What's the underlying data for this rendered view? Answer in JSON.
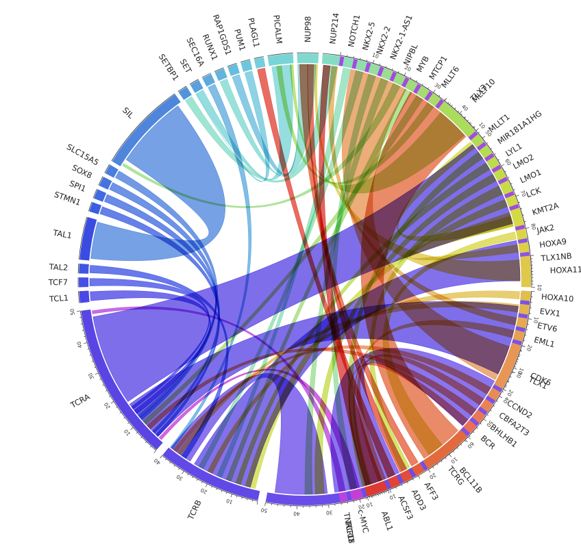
{
  "segments": [
    {
      "name": "TLX3",
      "color": "#a24be0",
      "ticks": true,
      "max": 80
    },
    {
      "name": "TLX1NB",
      "color": "#8a55e6",
      "ticks": false
    },
    {
      "name": "TLX1",
      "color": "#7a52e8",
      "ticks": true,
      "max": 60
    },
    {
      "name": "TCRG",
      "color": "#7050e8",
      "ticks": false
    },
    {
      "name": "TCRD",
      "color": "#6a4de8",
      "ticks": true,
      "max": 50
    },
    {
      "name": "TCRB",
      "color": "#6049e6",
      "ticks": true,
      "max": 40
    },
    {
      "name": "TCRA",
      "color": "#5a45e4",
      "ticks": true,
      "max": 50
    },
    {
      "name": "TCL1",
      "color": "#4b47e6",
      "ticks": false
    },
    {
      "name": "TCF7",
      "color": "#4450e6",
      "ticks": false
    },
    {
      "name": "TAL2",
      "color": "#3e55e4",
      "ticks": false
    },
    {
      "name": "TAL1",
      "color": "#3a4ce0",
      "ticks": false
    },
    {
      "name": "STMN1",
      "color": "#3a5ee0",
      "ticks": false
    },
    {
      "name": "SPI1",
      "color": "#3f6ae0",
      "ticks": false
    },
    {
      "name": "SOX8",
      "color": "#4574de",
      "ticks": false
    },
    {
      "name": "SLC15A5",
      "color": "#4a7edc",
      "ticks": false
    },
    {
      "name": "SIL",
      "color": "#4f86dc",
      "ticks": false
    },
    {
      "name": "SETBP1",
      "color": "#5393dc",
      "ticks": false
    },
    {
      "name": "SET",
      "color": "#59a0dc",
      "ticks": false
    },
    {
      "name": "SEC16A",
      "color": "#5eaadc",
      "ticks": false
    },
    {
      "name": "RUNX1",
      "color": "#63b4dc",
      "ticks": false
    },
    {
      "name": "RAP1GDS1",
      "color": "#68bddc",
      "ticks": false
    },
    {
      "name": "PUM1",
      "color": "#6ec6dc",
      "ticks": false
    },
    {
      "name": "PLAGL1",
      "color": "#74cedb",
      "ticks": false
    },
    {
      "name": "PICALM",
      "color": "#79d4d7",
      "ticks": false
    },
    {
      "name": "NUP98",
      "color": "#7fd9cf",
      "ticks": false
    },
    {
      "name": "NUP214",
      "color": "#85dcc5",
      "ticks": false
    },
    {
      "name": "NOTCH1",
      "color": "#8bdeb9",
      "ticks": false
    },
    {
      "name": "NKX2-5",
      "color": "#90deac",
      "ticks": false
    },
    {
      "name": "NKX2-2",
      "color": "#95de9e",
      "ticks": false
    },
    {
      "name": "NKX2-1-AS1",
      "color": "#99de91",
      "ticks": false
    },
    {
      "name": "NIPBL",
      "color": "#9cdd85",
      "ticks": false
    },
    {
      "name": "MYB",
      "color": "#9fdc7a",
      "ticks": false
    },
    {
      "name": "MTCP1",
      "color": "#a3dc70",
      "ticks": false
    },
    {
      "name": "MLLT6",
      "color": "#a7dc66",
      "ticks": false
    },
    {
      "name": "MLLT10",
      "color": "#abdc5c",
      "ticks": true,
      "max": 10
    },
    {
      "name": "MLLT1",
      "color": "#b0dc55",
      "ticks": false
    },
    {
      "name": "MIR181A1HG",
      "color": "#b5dc4f",
      "ticks": false
    },
    {
      "name": "LYL1",
      "color": "#bbdc4b",
      "ticks": false
    },
    {
      "name": "LMO2",
      "color": "#c1dc48",
      "ticks": false
    },
    {
      "name": "LMO1",
      "color": "#c7dc46",
      "ticks": false
    },
    {
      "name": "LCK",
      "color": "#cedc45",
      "ticks": false
    },
    {
      "name": "KMT2A",
      "color": "#d4da45",
      "ticks": false
    },
    {
      "name": "JAK2",
      "color": "#d9d645",
      "ticks": false
    },
    {
      "name": "HOXA9",
      "color": "#ddd046",
      "ticks": false
    },
    {
      "name": "HOXA11",
      "color": "#e0c848",
      "ticks": true,
      "max": 10
    },
    {
      "name": "HOXA10",
      "color": "#e2bf4b",
      "ticks": false
    },
    {
      "name": "EVX1",
      "color": "#e4b54e",
      "ticks": false
    },
    {
      "name": "ETV6",
      "color": "#e5aa50",
      "ticks": false
    },
    {
      "name": "EML1",
      "color": "#e6a052",
      "ticks": false
    },
    {
      "name": "CDK6",
      "color": "#e79654",
      "ticks": true,
      "max": 20
    },
    {
      "name": "CCND2",
      "color": "#e88c55",
      "ticks": false
    },
    {
      "name": "CBFA2T3",
      "color": "#e98256",
      "ticks": false
    },
    {
      "name": "BHLHB1",
      "color": "#ea7856",
      "ticks": false
    },
    {
      "name": "BCR",
      "color": "#eb6e56",
      "ticks": false
    },
    {
      "name": "BCL11B",
      "color": "#e36a3d",
      "ticks": true,
      "max": 20
    },
    {
      "name": "AFF3",
      "color": "#e45c3a",
      "ticks": false
    },
    {
      "name": "ADD3",
      "color": "#e34e38",
      "ticks": false
    },
    {
      "name": "ACSF3",
      "color": "#e24336",
      "ticks": false
    },
    {
      "name": "ABL1",
      "color": "#dd3a33",
      "ticks": true,
      "max": 10
    },
    {
      "name": "c-MYC",
      "color": "#c43ed8",
      "ticks": false
    },
    {
      "name": "TNRC18",
      "color": "#b844dc",
      "ticks": false
    }
  ]
}
